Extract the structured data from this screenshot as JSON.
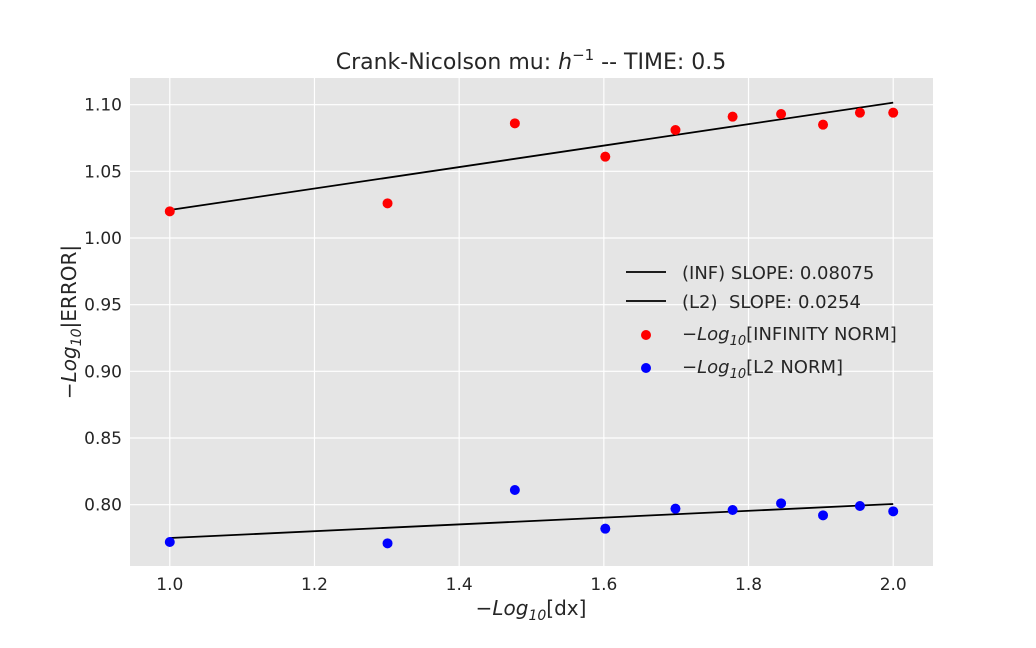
{
  "chart_data": {
    "type": "scatter",
    "title_prefix": "Crank-Nicolson mu: ",
    "title_math_base": "h",
    "title_math_sup": "−1",
    "title_suffix": " -- TIME: 0.5",
    "xlabel_prefix": "−Log",
    "xlabel_sub": "10",
    "xlabel_suffix": "[dx]",
    "ylabel_prefix": "−Log",
    "ylabel_sub": "10",
    "ylabel_suffix": "|ERROR|",
    "xlim": [
      0.945,
      2.055
    ],
    "ylim": [
      0.754,
      1.12
    ],
    "x_ticks": [
      1.0,
      1.2,
      1.4,
      1.6,
      1.8,
      2.0
    ],
    "x_tick_labels": [
      "1.0",
      "1.2",
      "1.4",
      "1.6",
      "1.8",
      "2.0"
    ],
    "y_ticks": [
      0.8,
      0.85,
      0.9,
      0.95,
      1.0,
      1.05,
      1.1
    ],
    "y_tick_labels": [
      "0.80",
      "0.85",
      "0.90",
      "0.95",
      "1.00",
      "1.05",
      "1.10"
    ],
    "grid": true,
    "legend_position": "right",
    "lines": [
      {
        "label": "(INF) SLOPE: 0.08075",
        "x": [
          1.0,
          2.0
        ],
        "y": [
          1.021,
          1.1015
        ],
        "color": "#000000"
      },
      {
        "label": "(L2)  SLOPE: 0.0254",
        "x": [
          1.0,
          2.0
        ],
        "y": [
          0.775,
          0.8005
        ],
        "color": "#000000"
      }
    ],
    "series": [
      {
        "label_prefix": "−Log",
        "label_sub": "10",
        "label_suffix": "[INFINITY NORM]",
        "color": "#ff0000",
        "x": [
          1.0,
          1.301,
          1.477,
          1.602,
          1.699,
          1.778,
          1.845,
          1.903,
          1.954,
          2.0
        ],
        "y": [
          1.02,
          1.026,
          1.086,
          1.061,
          1.081,
          1.091,
          1.093,
          1.085,
          1.094,
          1.094
        ]
      },
      {
        "label_prefix": "−Log",
        "label_sub": "10",
        "label_suffix": "[L2 NORM]",
        "color": "#0000ff",
        "x": [
          1.0,
          1.301,
          1.477,
          1.602,
          1.699,
          1.778,
          1.845,
          1.903,
          1.954,
          2.0
        ],
        "y": [
          0.772,
          0.771,
          0.811,
          0.782,
          0.797,
          0.796,
          0.801,
          0.792,
          0.799,
          0.795
        ]
      }
    ],
    "colors": {
      "plot_bg": "#e5e5e5",
      "grid": "#ffffff",
      "text": "#262626"
    }
  }
}
